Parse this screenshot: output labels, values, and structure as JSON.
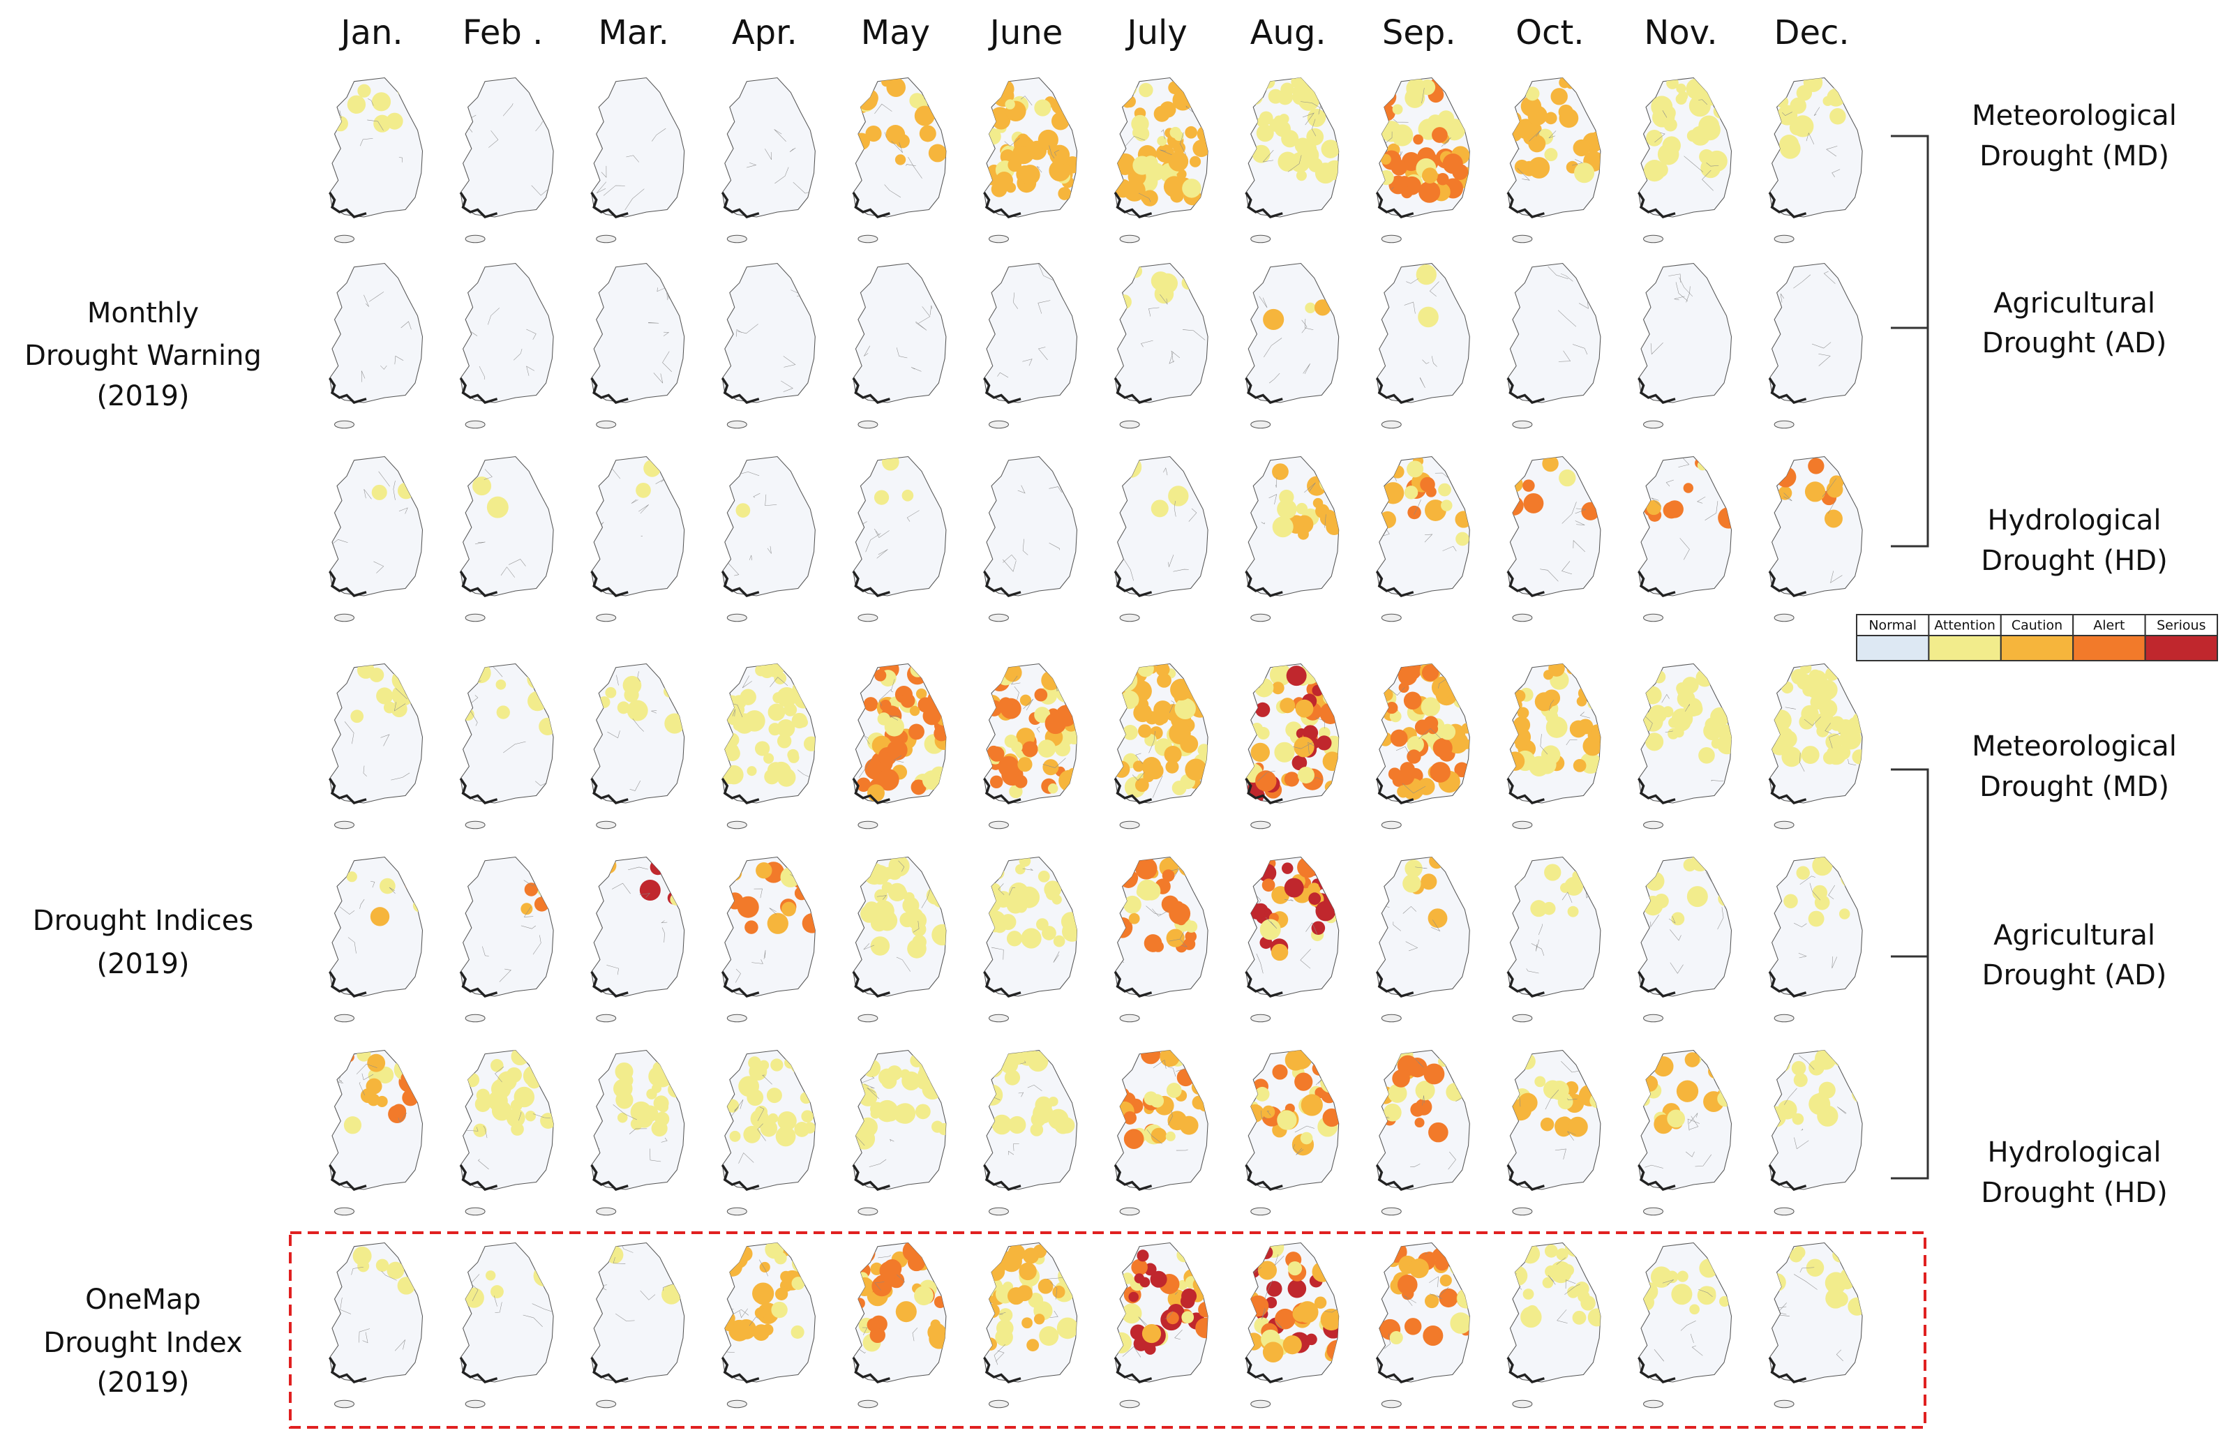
{
  "months": [
    "Jan.",
    "Feb .",
    "Mar.",
    "Apr.",
    "May",
    "June",
    "July",
    "Aug.",
    "Sep.",
    "Oct.",
    "Nov.",
    "Dec."
  ],
  "row_groups": [
    {
      "label": [
        "Monthly",
        "Drought Warning",
        "(2019)"
      ],
      "types": [
        [
          "Meteorological",
          "Drought (MD)"
        ],
        [
          "Agricultural",
          "Drought (AD)"
        ],
        [
          "Hydrological",
          "Drought (HD)"
        ]
      ]
    },
    {
      "label": [
        "Drought Indices",
        "(2019)"
      ],
      "types": [
        [
          "Meteorological",
          "Drought (MD)"
        ],
        [
          "Agricultural",
          "Drought (AD)"
        ],
        [
          "Hydrological",
          "Drought (HD)"
        ]
      ]
    },
    {
      "label": [
        "OneMap",
        "Drought Index",
        "(2019)"
      ]
    }
  ],
  "legend": [
    {
      "label": "Normal",
      "color": "#dde8f3"
    },
    {
      "label": "Attention",
      "color": "#f2ec8c"
    },
    {
      "label": "Caution",
      "color": "#f6b53c"
    },
    {
      "label": "Alert",
      "color": "#f27a2a"
    },
    {
      "label": "Serious",
      "color": "#c0272d"
    }
  ]
}
